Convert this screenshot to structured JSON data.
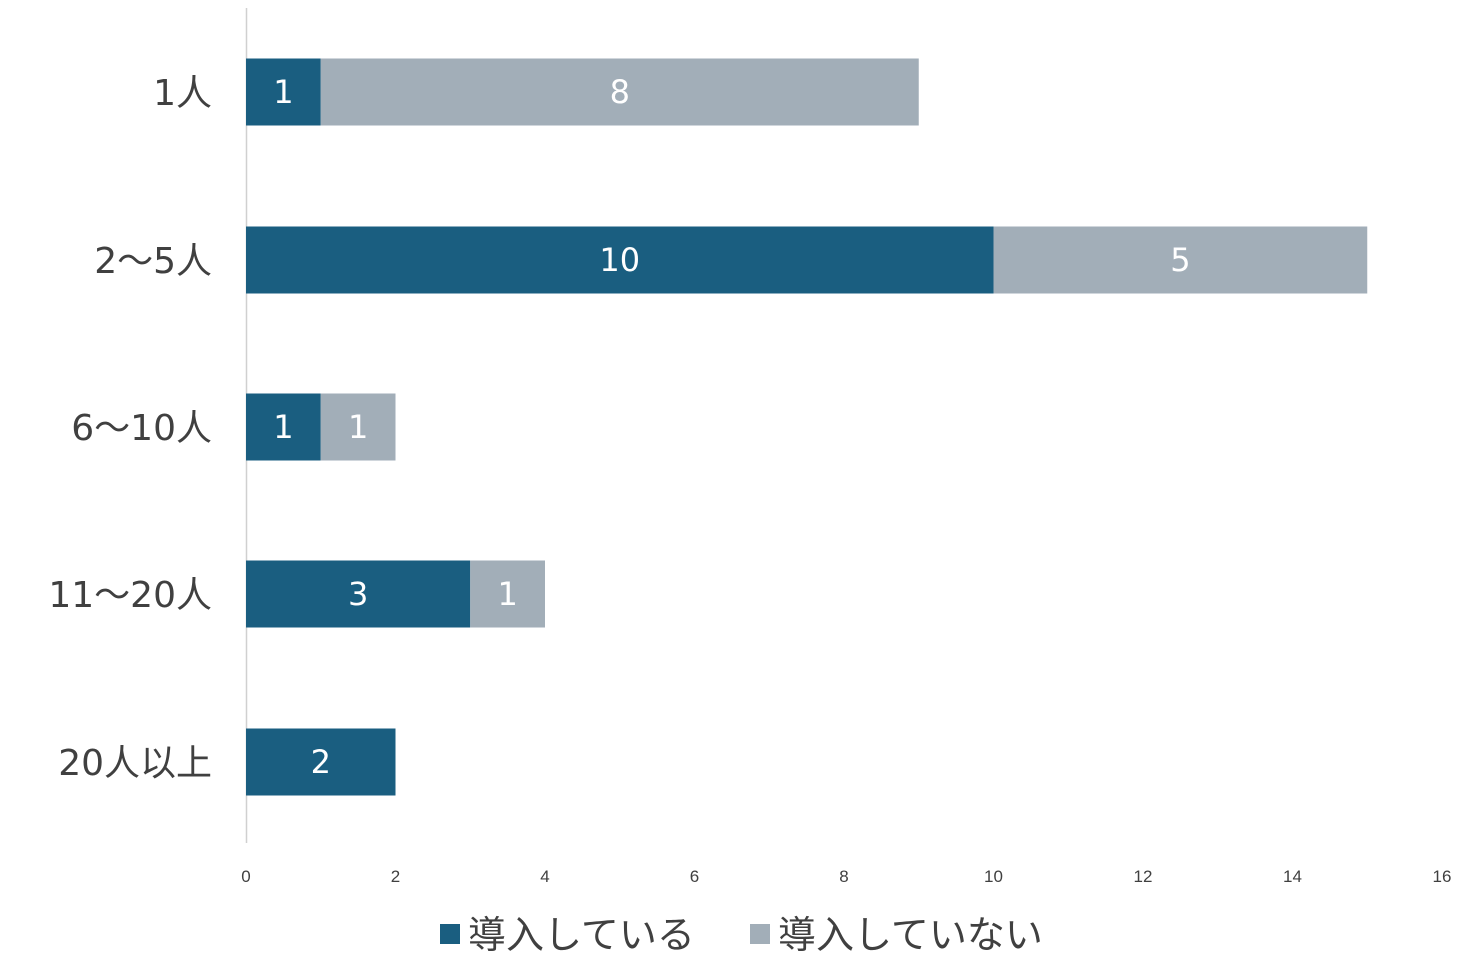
{
  "chart_data": {
    "type": "bar",
    "orientation": "horizontal",
    "stacked": true,
    "categories": [
      "1人",
      "2～5人",
      "6～10人",
      "11～20人",
      "20人以上"
    ],
    "series": [
      {
        "name": "導入している",
        "values": [
          1,
          10,
          1,
          3,
          2
        ],
        "color": "#1a5e80"
      },
      {
        "name": "導入していない",
        "values": [
          8,
          5,
          1,
          1,
          0
        ],
        "color": "#a2aeb8"
      }
    ],
    "xlim": [
      0,
      16
    ],
    "xticks": [
      "0",
      "2",
      "4",
      "6",
      "8",
      "10",
      "12",
      "14",
      "16"
    ],
    "grid": false,
    "legend_position": "bottom"
  }
}
